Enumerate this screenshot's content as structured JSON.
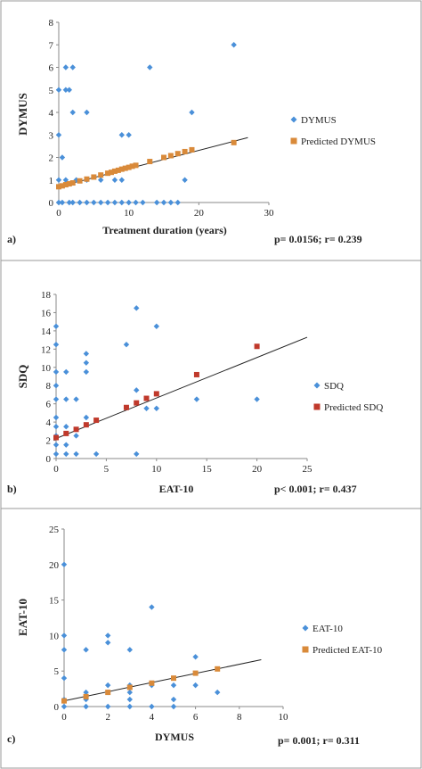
{
  "chart_data": [
    {
      "type": "scatter",
      "panel_label": "a)",
      "xlabel": "Treatment duration  (years)",
      "ylabel": "DYMUS",
      "xlim": [
        0,
        30
      ],
      "ylim": [
        0,
        8
      ],
      "xticks": [
        0,
        10,
        20,
        30
      ],
      "yticks": [
        0,
        1,
        2,
        3,
        4,
        5,
        6,
        7,
        8
      ],
      "grid": false,
      "legend_position": "right",
      "stats": "p= 0.0156; r= 0.239",
      "series": [
        {
          "name": "DYMUS",
          "marker": "diamond",
          "color": "#4a90d9",
          "points": [
            [
              0,
              0
            ],
            [
              0,
              1
            ],
            [
              0,
              3
            ],
            [
              0,
              5
            ],
            [
              0.5,
              0
            ],
            [
              0.5,
              2
            ],
            [
              1,
              1
            ],
            [
              1,
              5
            ],
            [
              1,
              6
            ],
            [
              1.5,
              5
            ],
            [
              1.5,
              0
            ],
            [
              2,
              0
            ],
            [
              2,
              4
            ],
            [
              2,
              6
            ],
            [
              2.5,
              1
            ],
            [
              3,
              0
            ],
            [
              4,
              0
            ],
            [
              4,
              4
            ],
            [
              4,
              1
            ],
            [
              5,
              0
            ],
            [
              6,
              0
            ],
            [
              6,
              1
            ],
            [
              7,
              0
            ],
            [
              8,
              1
            ],
            [
              8,
              0
            ],
            [
              9,
              3
            ],
            [
              9,
              1
            ],
            [
              9,
              0
            ],
            [
              10,
              3
            ],
            [
              10,
              0
            ],
            [
              11,
              0
            ],
            [
              12,
              0
            ],
            [
              13,
              6
            ],
            [
              14,
              0
            ],
            [
              15,
              0
            ],
            [
              16,
              0
            ],
            [
              17,
              0
            ],
            [
              18,
              1
            ],
            [
              19,
              4
            ],
            [
              25,
              7
            ]
          ]
        },
        {
          "name": "Predicted DYMUS",
          "marker": "square",
          "color": "#d98a3a",
          "points": [
            [
              0,
              0.7
            ],
            [
              0.5,
              0.74
            ],
            [
              1,
              0.79
            ],
            [
              1.5,
              0.83
            ],
            [
              2,
              0.87
            ],
            [
              3,
              0.96
            ],
            [
              4,
              1.04
            ],
            [
              5,
              1.13
            ],
            [
              6,
              1.22
            ],
            [
              7,
              1.3
            ],
            [
              7.5,
              1.34
            ],
            [
              8,
              1.39
            ],
            [
              8.5,
              1.43
            ],
            [
              9,
              1.48
            ],
            [
              9.5,
              1.52
            ],
            [
              10,
              1.56
            ],
            [
              10.5,
              1.61
            ],
            [
              11,
              1.65
            ],
            [
              13,
              1.82
            ],
            [
              15,
              2.0
            ],
            [
              16,
              2.08
            ],
            [
              17,
              2.17
            ],
            [
              18,
              2.26
            ],
            [
              19,
              2.34
            ],
            [
              25,
              2.66
            ]
          ]
        }
      ],
      "trendline": [
        [
          0,
          0.7
        ],
        [
          27,
          2.88
        ]
      ]
    },
    {
      "type": "scatter",
      "panel_label": "b)",
      "xlabel": "EAT-10",
      "ylabel": "SDQ",
      "xlim": [
        0,
        25
      ],
      "ylim": [
        0,
        18
      ],
      "xticks": [
        0,
        5,
        10,
        15,
        20,
        25
      ],
      "yticks": [
        0,
        2,
        4,
        6,
        8,
        10,
        12,
        14,
        16,
        18
      ],
      "grid": false,
      "legend_position": "right",
      "stats": "p< 0.001; r= 0.437",
      "series": [
        {
          "name": "SDQ",
          "marker": "diamond",
          "color": "#4a90d9",
          "points": [
            [
              0,
              0.5
            ],
            [
              0,
              1.5
            ],
            [
              0,
              2.5
            ],
            [
              0,
              3.5
            ],
            [
              0,
              4.5
            ],
            [
              0,
              6.5
            ],
            [
              0,
              8
            ],
            [
              0,
              9.5
            ],
            [
              0,
              12.5
            ],
            [
              0,
              14.5
            ],
            [
              1,
              0.5
            ],
            [
              1,
              1.5
            ],
            [
              1,
              3.5
            ],
            [
              1,
              6.5
            ],
            [
              1,
              9.5
            ],
            [
              2,
              0.5
            ],
            [
              2,
              2.5
            ],
            [
              2,
              6.5
            ],
            [
              3,
              4.5
            ],
            [
              3,
              9.5
            ],
            [
              3,
              10.5
            ],
            [
              3,
              11.5
            ],
            [
              4,
              0.5
            ],
            [
              7,
              12.5
            ],
            [
              8,
              0.5
            ],
            [
              8,
              7.5
            ],
            [
              8,
              16.5
            ],
            [
              9,
              5.5
            ],
            [
              10,
              5.5
            ],
            [
              10,
              14.5
            ],
            [
              14,
              6.5
            ],
            [
              20,
              6.5
            ]
          ]
        },
        {
          "name": "Predicted SDQ",
          "marker": "square",
          "color": "#c0392b",
          "points": [
            [
              0,
              2.3
            ],
            [
              1,
              2.75
            ],
            [
              2,
              3.2
            ],
            [
              3,
              3.7
            ],
            [
              4,
              4.2
            ],
            [
              7,
              5.6
            ],
            [
              8,
              6.1
            ],
            [
              9,
              6.6
            ],
            [
              10,
              7.1
            ],
            [
              14,
              9.2
            ],
            [
              20,
              12.3
            ]
          ]
        }
      ],
      "trendline": [
        [
          0,
          2.2
        ],
        [
          25,
          13.3
        ]
      ]
    },
    {
      "type": "scatter",
      "panel_label": "c)",
      "xlabel": "DYMUS",
      "ylabel": "EAT-10",
      "xlim": [
        0,
        10
      ],
      "ylim": [
        0,
        25
      ],
      "xticks": [
        0,
        2,
        4,
        6,
        8,
        10
      ],
      "yticks": [
        0,
        5,
        10,
        15,
        20,
        25
      ],
      "grid": false,
      "legend_position": "right",
      "stats": "p= 0.001; r= 0.311",
      "series": [
        {
          "name": "EAT-10",
          "marker": "diamond",
          "color": "#4a90d9",
          "points": [
            [
              0,
              0
            ],
            [
              0,
              1
            ],
            [
              0,
              4
            ],
            [
              0,
              8
            ],
            [
              0,
              10
            ],
            [
              0,
              20
            ],
            [
              1,
              0
            ],
            [
              1,
              1
            ],
            [
              1,
              2
            ],
            [
              1,
              8
            ],
            [
              2,
              0
            ],
            [
              2,
              2
            ],
            [
              2,
              3
            ],
            [
              2,
              9
            ],
            [
              2,
              10
            ],
            [
              3,
              0
            ],
            [
              3,
              1
            ],
            [
              3,
              2
            ],
            [
              3,
              3
            ],
            [
              3,
              8
            ],
            [
              4,
              0
            ],
            [
              4,
              3
            ],
            [
              4,
              14
            ],
            [
              5,
              0
            ],
            [
              5,
              1
            ],
            [
              5,
              3
            ],
            [
              6,
              3
            ],
            [
              6,
              7
            ],
            [
              7,
              2
            ]
          ]
        },
        {
          "name": "Predicted EAT-10",
          "marker": "square",
          "color": "#d98a3a",
          "points": [
            [
              0,
              0.8
            ],
            [
              1,
              1.4
            ],
            [
              2,
              2.0
            ],
            [
              3,
              2.7
            ],
            [
              4,
              3.3
            ],
            [
              5,
              4.0
            ],
            [
              6,
              4.7
            ],
            [
              7,
              5.3
            ]
          ]
        }
      ],
      "trendline": [
        [
          0,
          0.8
        ],
        [
          9,
          6.6
        ]
      ]
    }
  ]
}
